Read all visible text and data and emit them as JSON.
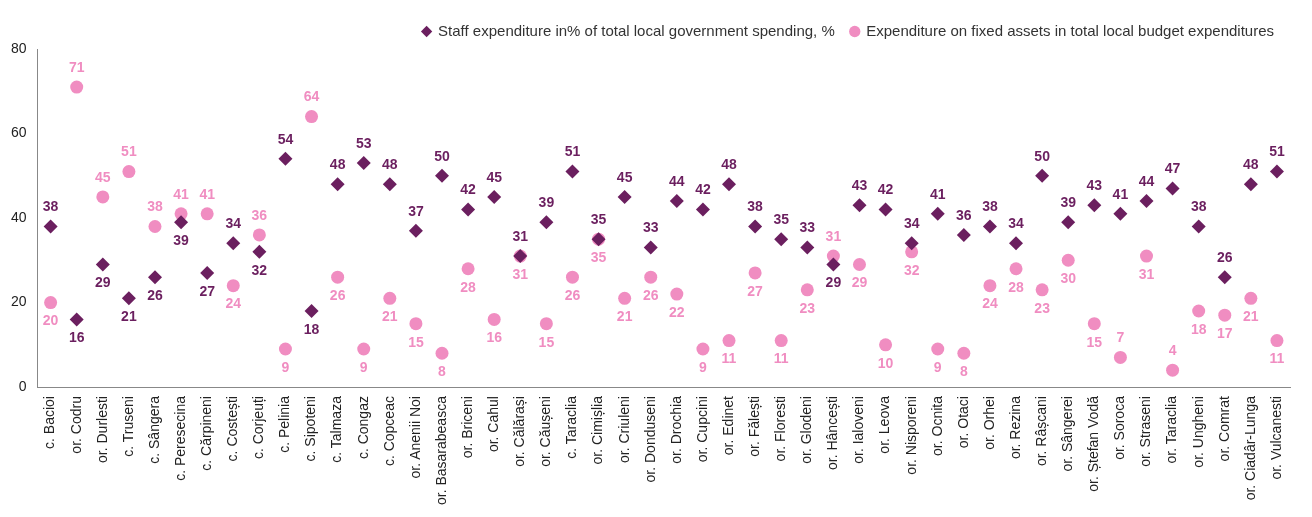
{
  "chart_data": {
    "type": "scatter",
    "categories": [
      "c. Bacioi",
      "or. Codru",
      "or. Durlesti",
      "c. Truseni",
      "c. Sângera",
      "c. Peresecina",
      "c. Cărpineni",
      "c. Costești",
      "c. Corjeuți",
      "c. Pelinia",
      "c. Sipoteni",
      "c. Talmaza",
      "c. Congaz",
      "c. Copceac",
      "or. Anenii Noi",
      "or. Basarabeasca",
      "or. Briceni",
      "or. Cahul",
      "or. Călărași",
      "or. Căușeni",
      "c. Taraclia",
      "or. Cimișlia",
      "or. Criuleni",
      "or. Donduseni",
      "or. Drochia",
      "or. Cupcini",
      "or. Edinet",
      "or. Fălești",
      "or. Floresti",
      "or. Glodeni",
      "or. Hâncești",
      "or. Ialoveni",
      "or. Leova",
      "or. Nisporeni",
      "or. Ocnita",
      "or. Otaci",
      "or. Orhei",
      "or. Rezina",
      "or. Râșcani",
      "or. Sângerei",
      "or. Ștefan Vodă",
      "or. Soroca",
      "or. Straseni",
      "or. Taraclia",
      "or. Ungheni",
      "or. Comrat",
      "or. Ciadâr-Lunga",
      "or. Vulcanesti"
    ],
    "series": [
      {
        "name": "Staff expenditure in% of total local government spending, %",
        "color": "#6b1f5f",
        "marker": "diamond",
        "values": [
          38,
          16,
          29,
          21,
          26,
          39,
          27,
          34,
          32,
          54,
          18,
          48,
          53,
          48,
          37,
          50,
          42,
          45,
          31,
          39,
          51,
          35,
          45,
          33,
          44,
          42,
          48,
          38,
          35,
          33,
          29,
          43,
          42,
          34,
          41,
          36,
          38,
          34,
          50,
          39,
          43,
          41,
          44,
          47,
          38,
          26,
          48,
          51
        ]
      },
      {
        "name": "Expenditure on fixed assets in total local budget expenditures",
        "color": "#f08dc1",
        "marker": "circle",
        "values": [
          20,
          71,
          45,
          51,
          38,
          41,
          41,
          24,
          36,
          9,
          64,
          26,
          9,
          21,
          15,
          8,
          28,
          16,
          31,
          15,
          26,
          35,
          21,
          26,
          22,
          9,
          11,
          27,
          11,
          23,
          31,
          29,
          10,
          32,
          9,
          8,
          24,
          28,
          23,
          30,
          15,
          7,
          31,
          4,
          18,
          17,
          21,
          11
        ]
      }
    ],
    "ylim": [
      0,
      80
    ],
    "yticks": [
      0,
      20,
      40,
      60,
      80
    ],
    "grid": false,
    "legend": "top",
    "data_labels": true
  }
}
